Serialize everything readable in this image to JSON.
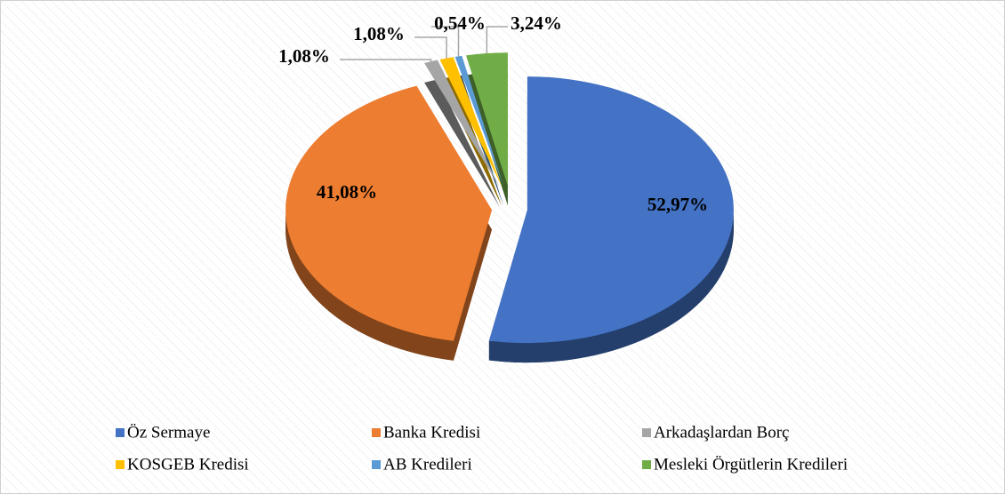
{
  "chart_data": {
    "type": "pie",
    "categories": [
      "Öz Sermaye",
      "Banka Kredisi",
      "Arkadaşlardan Borç",
      "KOSGEB Kredisi",
      "AB Kredileri",
      "Mesleki Örgütlerin Kredileri"
    ],
    "values": [
      52.97,
      41.08,
      1.08,
      1.08,
      0.54,
      3.24
    ],
    "value_labels": [
      "52,97%",
      "41,08%",
      "1,08%",
      "1,08%",
      "0,54%",
      "3,24%"
    ],
    "colors": [
      "#4472c4",
      "#ed7d31",
      "#a5a5a5",
      "#ffc000",
      "#5b9bd5",
      "#70ad47"
    ],
    "legend": "bottom"
  }
}
